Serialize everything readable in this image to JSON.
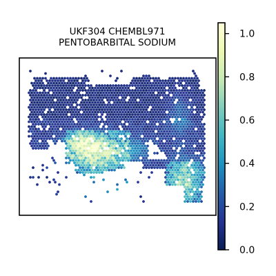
{
  "chart_data": {
    "type": "scatter",
    "title": "UKF304 CHEMBL971\nPENTOBARBITAL SODIUM",
    "title_lines": [
      "UKF304 CHEMBL971",
      "PENTOBARBITAL SODIUM"
    ],
    "xlabel": "",
    "ylabel": "",
    "axes_ticks": "none",
    "marker": "hexagon",
    "colormap": "YlGnBu",
    "colorbar": {
      "min": 0.0,
      "max": 1.05,
      "ticks": [
        0.0,
        0.2,
        0.4,
        0.6,
        0.8,
        1.0
      ],
      "tick_labels": [
        "0.0",
        "0.2",
        "0.4",
        "0.6",
        "0.8",
        "1.0"
      ],
      "placement": "right"
    },
    "colormap_stops": [
      "#081d58",
      "#253494",
      "#225ea8",
      "#1d91c0",
      "#41b6c4",
      "#7fcdbb",
      "#c7e9b4",
      "#edf8b1",
      "#ffffd9"
    ],
    "description_of_pattern": "spatial transcriptomics spots; mostly low values (dark blue), elevated values (0.4-1.0) concentrated in lower-middle region and lower-right lobe"
  }
}
